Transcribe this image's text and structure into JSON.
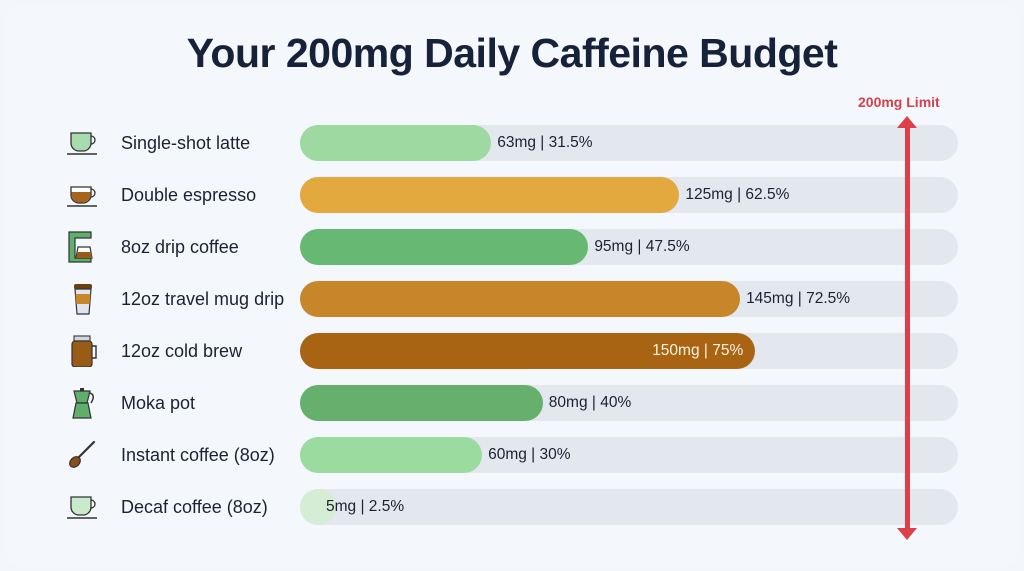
{
  "chart_data": {
    "type": "bar",
    "orientation": "horizontal",
    "title": "Your 200mg Daily Caffeine Budget",
    "xlim": [
      0,
      200
    ],
    "grid": false,
    "reference_line": {
      "value": 200,
      "label": "200mg Limit",
      "color": "#dc3f48"
    },
    "categories": [
      "Single-shot latte",
      "Double espresso",
      "8oz drip coffee",
      "12oz travel mug drip",
      "12oz cold brew",
      "Moka pot",
      "Instant coffee (8oz)",
      "Decaf coffee (8oz)"
    ],
    "values": [
      63,
      125,
      95,
      145,
      150,
      80,
      60,
      5
    ],
    "data_labels": [
      "63mg | 31.5%",
      "125mg | 62.5%",
      "95mg | 47.5%",
      "145mg | 72.5%",
      "150mg | 75%",
      "80mg | 40%",
      "60mg | 30%",
      "5mg | 2.5%"
    ],
    "colors": [
      "#9dd9a0",
      "#e3a83e",
      "#66b872",
      "#c8862a",
      "#a86412",
      "#66b06e",
      "#9bdb9f",
      "#d5edd4"
    ],
    "icons": [
      "latte-cup-icon",
      "espresso-cup-icon",
      "drip-coffee-maker-icon",
      "travel-mug-icon",
      "mason-jar-icon",
      "moka-pot-icon",
      "spoon-icon",
      "decaf-cup-icon"
    ],
    "track_color": "#e3e7ee"
  }
}
